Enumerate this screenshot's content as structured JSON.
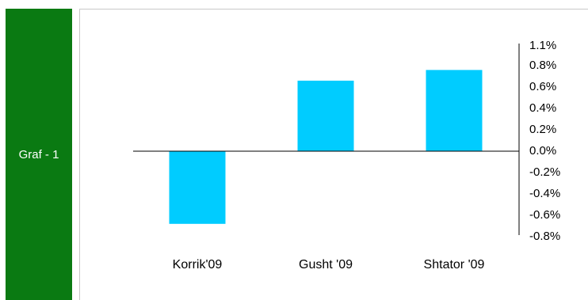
{
  "side_label": {
    "text": "Graf - 1",
    "background": "#0a7a12",
    "text_color": "#ffffff"
  },
  "chart_data": {
    "type": "bar",
    "categories": [
      "Korrik'09",
      "Gusht '09",
      "Shtator '09"
    ],
    "values": [
      -0.68,
      0.66,
      0.76
    ],
    "title": "",
    "xlabel": "",
    "ylabel": "",
    "ylim": [
      -0.8,
      1.1
    ],
    "y_ticks": [
      "1.1%",
      "0.8%",
      "0.6%",
      "0.4%",
      "0.2%",
      "0.0%",
      "-0.2%",
      "-0.4%",
      "-0.6%",
      "-0.8%"
    ],
    "y_axis_side": "right",
    "grid": false,
    "legend": "none",
    "bar_color": "#00ccff"
  }
}
